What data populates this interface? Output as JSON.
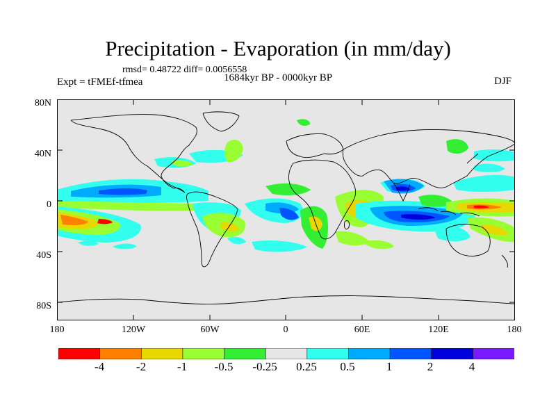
{
  "title": "Precipitation - Evaporation (in mm/day)",
  "stats": "rmsd= 0.48722 diff= 0.0056558",
  "experiment": "Expt = tFMEf-tfmea",
  "period": "1684kyr BP - 0000kyr BP",
  "season": "DJF",
  "lat_labels": [
    "80N",
    "40N",
    "0",
    "40S",
    "80S"
  ],
  "lon_labels": [
    "180",
    "120W",
    "60W",
    "0",
    "60E",
    "120E",
    "180"
  ],
  "colorbar": {
    "labels": [
      "-4",
      "-2",
      "-1",
      "-0.5",
      "-0.25",
      "0.25",
      "0.5",
      "1",
      "2",
      "4"
    ],
    "colors": [
      "#ff0000",
      "#ff8000",
      "#e6d800",
      "#99ff33",
      "#33ee33",
      "#e6e6e6",
      "#33ffee",
      "#00aaff",
      "#0055ff",
      "#0000dd",
      "#7a1aff"
    ]
  },
  "colors": {
    "ocean_background": "#e6e6e6",
    "coastline": "#000000"
  }
}
